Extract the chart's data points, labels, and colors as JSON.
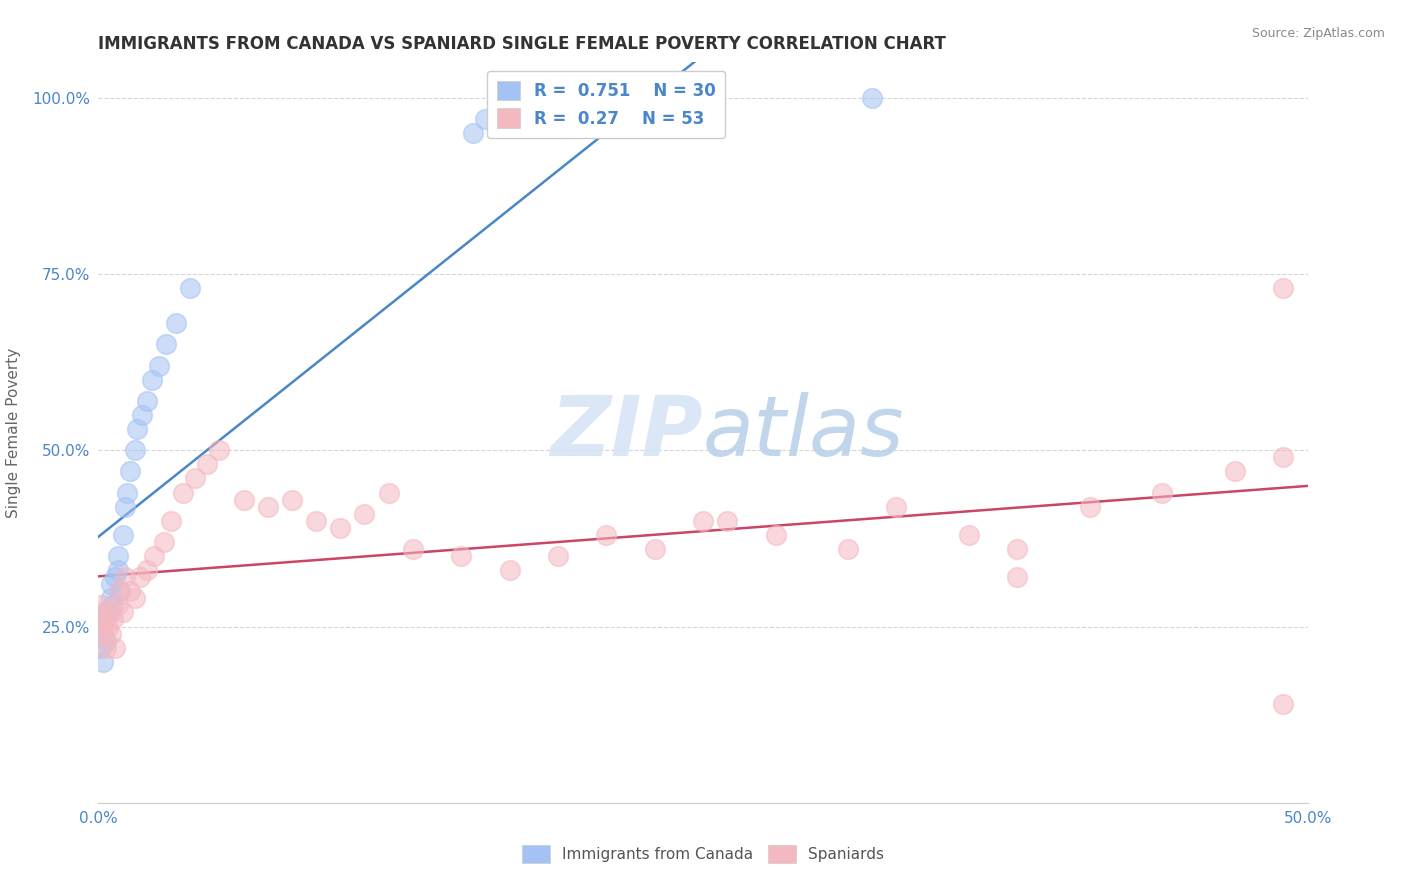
{
  "title": "IMMIGRANTS FROM CANADA VS SPANIARD SINGLE FEMALE POVERTY CORRELATION CHART",
  "source": "Source: ZipAtlas.com",
  "ylabel": "Single Female Poverty",
  "xlim": [
    0.0,
    0.5
  ],
  "ylim": [
    0.0,
    1.05
  ],
  "canada_R": 0.751,
  "canada_N": 30,
  "spaniard_R": 0.27,
  "spaniard_N": 53,
  "canada_color": "#a4c2f4",
  "spaniard_color": "#f4b8c1",
  "canada_line_color": "#4a86c8",
  "spaniard_line_color": "#cc4466",
  "watermark_color": "#d5e3f5",
  "canada_x": [
    0.001,
    0.001,
    0.002,
    0.002,
    0.003,
    0.003,
    0.004,
    0.005,
    0.005,
    0.006,
    0.007,
    0.008,
    0.008,
    0.009,
    0.01,
    0.011,
    0.012,
    0.013,
    0.015,
    0.016,
    0.018,
    0.02,
    0.022,
    0.025,
    0.028,
    0.032,
    0.038,
    0.155,
    0.16,
    0.32
  ],
  "canada_y": [
    0.22,
    0.25,
    0.2,
    0.26,
    0.23,
    0.27,
    0.27,
    0.29,
    0.31,
    0.28,
    0.32,
    0.33,
    0.35,
    0.3,
    0.38,
    0.42,
    0.44,
    0.47,
    0.5,
    0.53,
    0.55,
    0.57,
    0.6,
    0.62,
    0.65,
    0.68,
    0.73,
    0.95,
    0.97,
    1.0
  ],
  "spaniard_x": [
    0.001,
    0.001,
    0.002,
    0.002,
    0.003,
    0.003,
    0.004,
    0.005,
    0.005,
    0.006,
    0.007,
    0.008,
    0.009,
    0.01,
    0.011,
    0.013,
    0.015,
    0.017,
    0.02,
    0.023,
    0.027,
    0.03,
    0.035,
    0.04,
    0.045,
    0.05,
    0.06,
    0.07,
    0.08,
    0.09,
    0.1,
    0.11,
    0.13,
    0.15,
    0.17,
    0.19,
    0.21,
    0.23,
    0.26,
    0.28,
    0.31,
    0.33,
    0.36,
    0.38,
    0.41,
    0.44,
    0.47,
    0.49,
    0.12,
    0.25,
    0.38,
    0.49,
    0.49
  ],
  "spaniard_y": [
    0.25,
    0.28,
    0.24,
    0.27,
    0.22,
    0.26,
    0.25,
    0.24,
    0.27,
    0.26,
    0.22,
    0.28,
    0.3,
    0.27,
    0.32,
    0.3,
    0.29,
    0.32,
    0.33,
    0.35,
    0.37,
    0.4,
    0.44,
    0.46,
    0.48,
    0.5,
    0.43,
    0.42,
    0.43,
    0.4,
    0.39,
    0.41,
    0.36,
    0.35,
    0.33,
    0.35,
    0.38,
    0.36,
    0.4,
    0.38,
    0.36,
    0.42,
    0.38,
    0.36,
    0.42,
    0.44,
    0.47,
    0.49,
    0.44,
    0.4,
    0.32,
    0.73,
    0.14
  ]
}
